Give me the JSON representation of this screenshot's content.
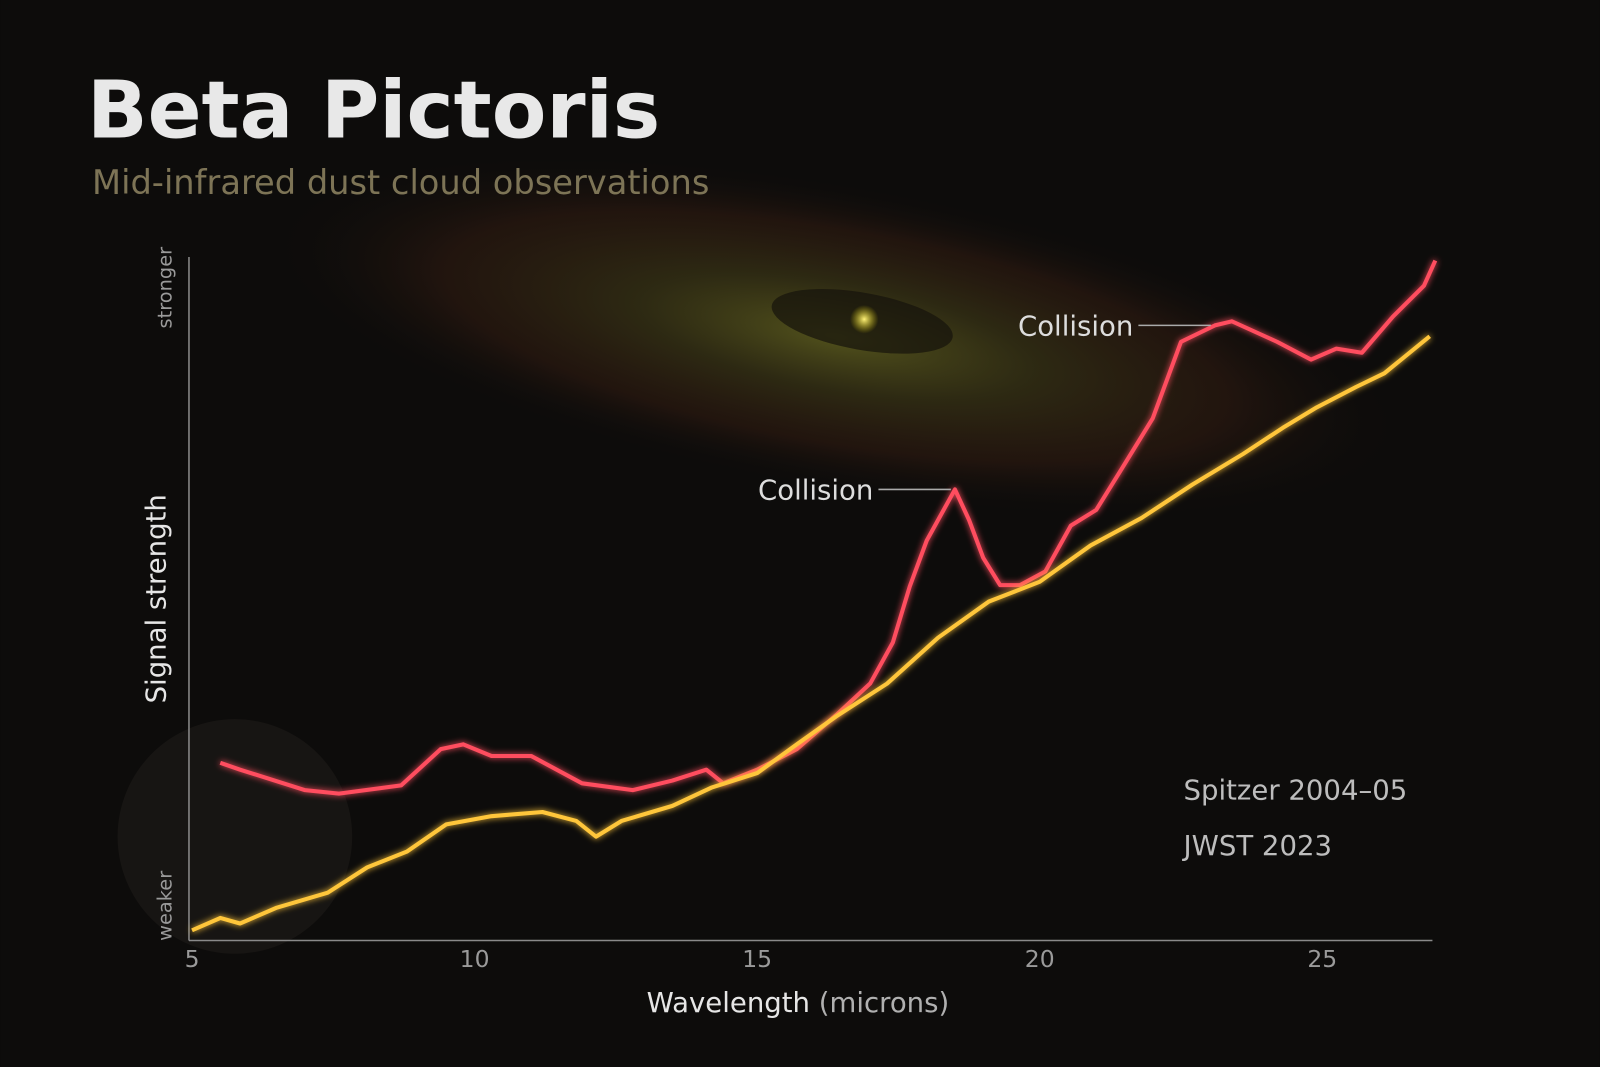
{
  "title": "Beta Pictoris",
  "subtitle": "Mid-infrared dust cloud observations",
  "chart_data": {
    "type": "line",
    "title": "Beta Pictoris",
    "subtitle": "Mid-infrared dust cloud observations",
    "xlabel": "Wavelength",
    "xlabel_unit": "(microns)",
    "ylabel": "Signal strength",
    "y_top_label": "stronger",
    "y_bottom_label": "weaker",
    "xlim": [
      5,
      27
    ],
    "ylim": [
      0,
      100
    ],
    "x_ticks": [
      5,
      10,
      15,
      20,
      25
    ],
    "x_tick_labels": [
      "5",
      "10",
      "15",
      "20",
      "25"
    ],
    "grid": false,
    "legend_position": "bottom-right",
    "annotations": [
      {
        "text": "Collision",
        "x": 18.5,
        "y": 66
      },
      {
        "text": "Collision",
        "x": 23.1,
        "y": 90
      }
    ],
    "series": [
      {
        "name": "Spitzer 2004–05",
        "color": "#ff4d5e",
        "x": [
          5.5,
          5.85,
          7,
          7.6,
          8.7,
          9.4,
          9.8,
          10.3,
          11,
          11.9,
          12.8,
          13.5,
          14.1,
          14.4,
          15,
          15.7,
          16.4,
          17,
          17.4,
          17.7,
          18,
          18.5,
          18.75,
          19,
          19.3,
          19.65,
          20.1,
          20.55,
          21,
          21.45,
          22,
          22.5,
          23.1,
          23.4,
          24.2,
          24.8,
          25.25,
          25.7,
          26.25,
          26.8,
          27
        ],
        "y": [
          26,
          25,
          22,
          21.5,
          22.7,
          28,
          28.7,
          27,
          27,
          23,
          22,
          23.4,
          25,
          23,
          25,
          28,
          33,
          37.6,
          43.6,
          51.8,
          58.5,
          66,
          61.5,
          56,
          52,
          52,
          54,
          60.7,
          63,
          69,
          76.4,
          87.6,
          90,
          90.6,
          87.6,
          85,
          86.6,
          86,
          91.3,
          95.8,
          99.5
        ]
      },
      {
        "name": "JWST 2023",
        "color": "#ffc63a",
        "x": [
          5,
          5.5,
          5.85,
          6.5,
          7.4,
          8.1,
          8.8,
          9.5,
          10.3,
          11.2,
          11.8,
          12.15,
          12.6,
          13.5,
          14.2,
          15,
          15.7,
          16.4,
          17.3,
          18.2,
          19.1,
          20,
          20.9,
          21.8,
          22.7,
          23.6,
          24.3,
          24.9,
          25.6,
          26.1,
          26.9
        ],
        "y": [
          1.5,
          3.3,
          2.5,
          4.8,
          7,
          10.7,
          13,
          17,
          18.2,
          18.8,
          17.5,
          15.2,
          17.5,
          19.7,
          22.4,
          24.5,
          28.7,
          32.8,
          37.6,
          44.3,
          49.6,
          52.5,
          57.8,
          61.8,
          66.7,
          71.2,
          75,
          78,
          81,
          83,
          88.4
        ]
      }
    ]
  }
}
